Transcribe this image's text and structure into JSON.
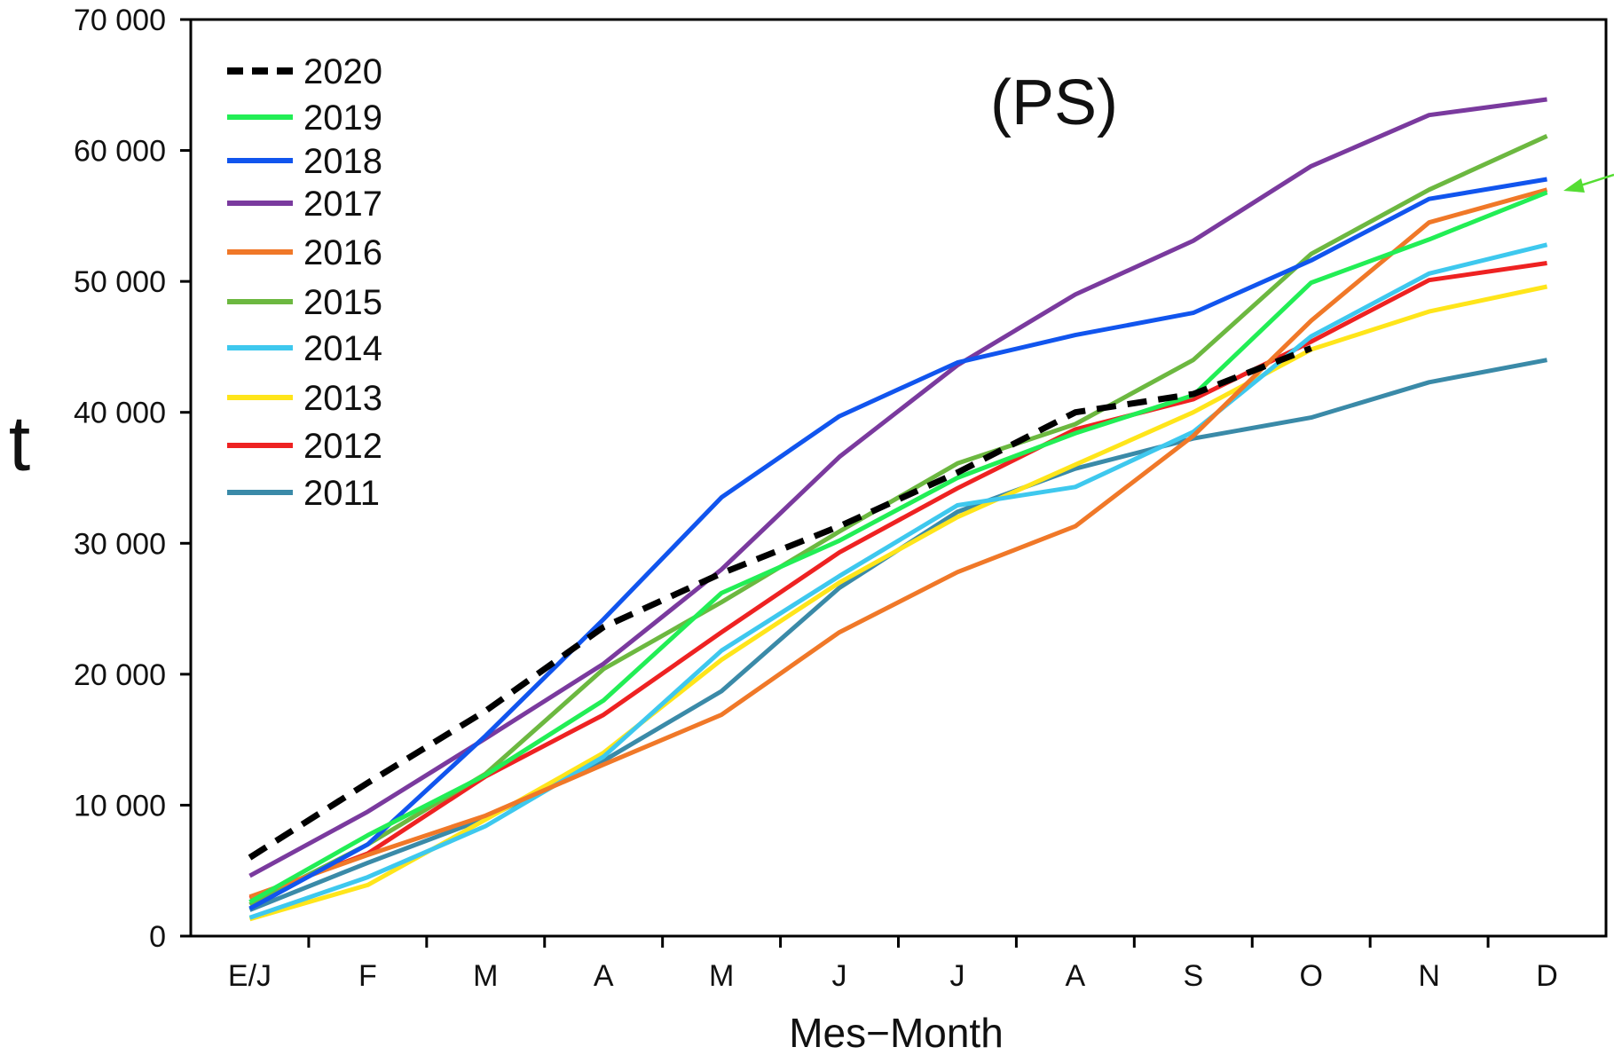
{
  "chart_data": {
    "type": "line",
    "title": "",
    "panel_label": "(PS)",
    "xlabel": "Mes−Month",
    "ylabel": "t",
    "categories": [
      "E/J",
      "F",
      "M",
      "A",
      "M",
      "J",
      "J",
      "A",
      "S",
      "O",
      "N",
      "D"
    ],
    "ylim": [
      0,
      70000
    ],
    "yticks": [
      0,
      10000,
      20000,
      30000,
      40000,
      50000,
      60000,
      70000
    ],
    "ytick_labels": [
      "0",
      "10 000",
      "20 000",
      "30 000",
      "40 000",
      "50 000",
      "60 000",
      "70 000"
    ],
    "grid": false,
    "legend_position": "top-left",
    "series": [
      {
        "name": "2020",
        "color": "#000000",
        "dashed": true,
        "values": [
          6000,
          11700,
          17200,
          23600,
          27700,
          31300,
          35400,
          40000,
          41400,
          44900,
          null,
          null
        ]
      },
      {
        "name": "2019",
        "color": "#22ee55",
        "dashed": false,
        "values": [
          2600,
          7700,
          12300,
          18000,
          26200,
          30200,
          35000,
          38400,
          41300,
          49900,
          53200,
          56800
        ]
      },
      {
        "name": "2018",
        "color": "#1155ee",
        "dashed": false,
        "values": [
          2100,
          7000,
          15300,
          24200,
          33500,
          39700,
          43800,
          45900,
          47600,
          51600,
          56300,
          57800
        ]
      },
      {
        "name": "2017",
        "color": "#7a3a9e",
        "dashed": false,
        "values": [
          4600,
          9500,
          15100,
          20800,
          28000,
          36600,
          43600,
          49000,
          53100,
          58800,
          62700,
          63900
        ]
      },
      {
        "name": "2016",
        "color": "#f07828",
        "dashed": false,
        "values": [
          3000,
          6200,
          9200,
          13100,
          16900,
          23200,
          27800,
          31300,
          38200,
          47000,
          54500,
          57000
        ]
      },
      {
        "name": "2015",
        "color": "#6cb840",
        "dashed": false,
        "values": [
          2400,
          7000,
          12400,
          20400,
          25500,
          30900,
          36100,
          39100,
          44000,
          52100,
          57000,
          61100
        ]
      },
      {
        "name": "2014",
        "color": "#3ec8ee",
        "dashed": false,
        "values": [
          1400,
          4500,
          8400,
          13700,
          21800,
          27500,
          32900,
          34300,
          38500,
          45800,
          50600,
          52800
        ]
      },
      {
        "name": "2013",
        "color": "#ffe51a",
        "dashed": false,
        "values": [
          1300,
          3900,
          8900,
          14000,
          21100,
          27000,
          32000,
          36000,
          40000,
          44800,
          47700,
          49600
        ]
      },
      {
        "name": "2012",
        "color": "#ee2222",
        "dashed": false,
        "values": [
          2900,
          6300,
          12200,
          16900,
          23200,
          29300,
          34200,
          38700,
          41000,
          45400,
          50100,
          51400
        ]
      },
      {
        "name": "2011",
        "color": "#3a8aa8",
        "dashed": false,
        "values": [
          2000,
          5600,
          9000,
          13400,
          18700,
          26600,
          32400,
          35700,
          38000,
          39600,
          42300,
          44000
        ]
      }
    ]
  }
}
